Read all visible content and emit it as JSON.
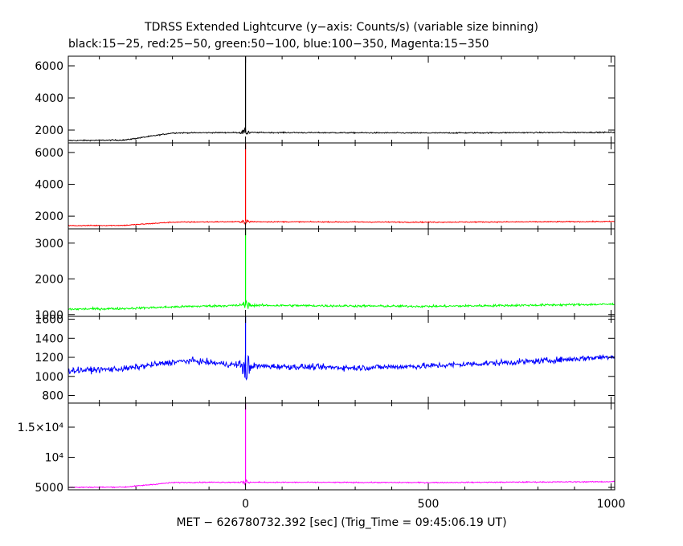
{
  "title": "TDRSS Extended Lightcurve (y−axis: Counts/s) (variable size binning)",
  "subtitle": "black:15−25, red:25−50, green:50−100, blue:100−350, Magenta:15−350",
  "chart_data": {
    "type": "line",
    "xlabel": "MET − 626780732.392 [sec] (Trig_Time = 09:45:06.19 UT)",
    "xlim": [
      -485,
      1010
    ],
    "xticks": [
      0,
      500,
      1000
    ],
    "xtick_labels": [
      "0",
      "500",
      "1000"
    ],
    "panels": [
      {
        "band": "15-25",
        "color": "#000000",
        "ylim": [
          1200,
          6600
        ],
        "yticks": [
          2000,
          4000,
          6000
        ],
        "ytick_labels": [
          "2000",
          "4000",
          "6000"
        ],
        "baseline": [
          [
            -485,
            1350
          ],
          [
            -330,
            1380
          ],
          [
            -200,
            1820
          ],
          [
            -100,
            1840
          ],
          [
            0,
            1850
          ],
          [
            500,
            1820
          ],
          [
            1010,
            1860
          ]
        ],
        "noise": 25,
        "peak": 6650,
        "burst_amp": 350
      },
      {
        "band": "25-50",
        "color": "#ff0000",
        "ylim": [
          1200,
          6600
        ],
        "yticks": [
          2000,
          4000,
          6000
        ],
        "ytick_labels": [
          "2000",
          "4000",
          "6000"
        ],
        "baseline": [
          [
            -485,
            1400
          ],
          [
            -330,
            1420
          ],
          [
            -200,
            1620
          ],
          [
            -100,
            1640
          ],
          [
            0,
            1650
          ],
          [
            500,
            1620
          ],
          [
            1010,
            1660
          ]
        ],
        "noise": 22,
        "peak": 6650,
        "burst_amp": 280
      },
      {
        "band": "50-100",
        "color": "#00ff00",
        "ylim": [
          950,
          3400
        ],
        "yticks": [
          1000,
          2000,
          3000
        ],
        "ytick_labels": [
          "1000",
          "2000",
          "3000"
        ],
        "baseline": [
          [
            -485,
            1150
          ],
          [
            -330,
            1170
          ],
          [
            -150,
            1230
          ],
          [
            0,
            1260
          ],
          [
            500,
            1230
          ],
          [
            1010,
            1290
          ]
        ],
        "noise": 22,
        "peak": 3450,
        "burst_amp": 230
      },
      {
        "band": "100-350",
        "color": "#0000ff",
        "ylim": [
          720,
          1630
        ],
        "yticks": [
          800,
          1000,
          1200,
          1400,
          1600
        ],
        "ytick_labels": [
          "800",
          "1000",
          "1200",
          "1400",
          "1600"
        ],
        "baseline": [
          [
            -485,
            1060
          ],
          [
            -330,
            1080
          ],
          [
            -200,
            1150
          ],
          [
            -150,
            1165
          ],
          [
            0,
            1110
          ],
          [
            300,
            1090
          ],
          [
            500,
            1110
          ],
          [
            800,
            1160
          ],
          [
            1010,
            1210
          ]
        ],
        "noise": 22,
        "peak": 1630,
        "burst_amp": 320
      },
      {
        "band": "15-350",
        "color": "#ff00ff",
        "ylim": [
          4600,
          19000
        ],
        "yticks": [
          5000,
          10000,
          15000
        ],
        "ytick_labels": [
          "5000",
          "10⁴",
          "1.5×10⁴"
        ],
        "baseline": [
          [
            -485,
            5000
          ],
          [
            -330,
            5050
          ],
          [
            -200,
            5800
          ],
          [
            -100,
            5850
          ],
          [
            0,
            5850
          ],
          [
            500,
            5800
          ],
          [
            1010,
            5950
          ]
        ],
        "noise": 60,
        "peak": 19000,
        "burst_amp": 600
      }
    ]
  }
}
